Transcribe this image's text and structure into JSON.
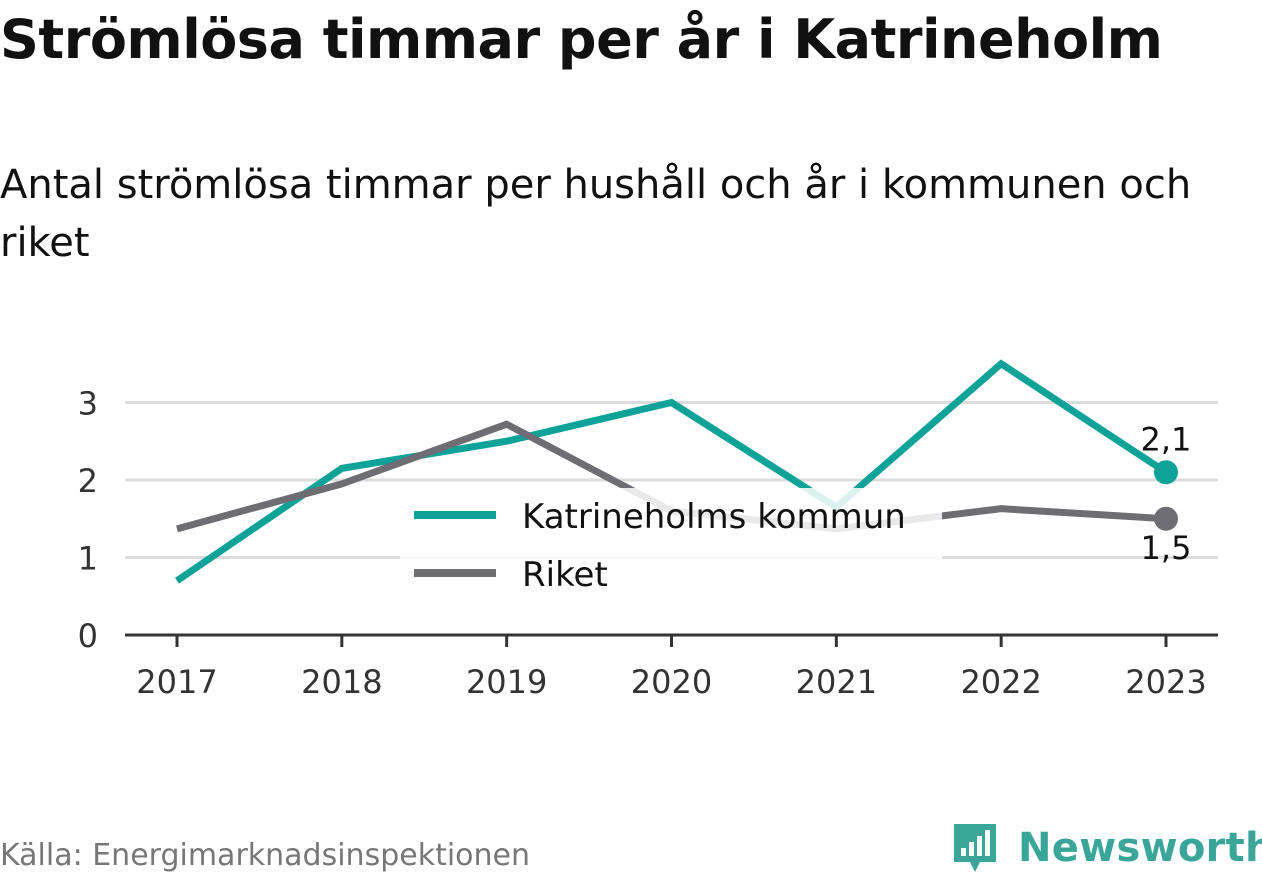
{
  "header": {
    "title": "Strömlösa timmar per år i Katrineholm",
    "subtitle": "Antal strömlösa timmar per hushåll och år i kommunen och riket"
  },
  "chart_data": {
    "type": "line",
    "x": [
      "2017",
      "2018",
      "2019",
      "2020",
      "2021",
      "2022",
      "2023"
    ],
    "ylim": [
      0,
      3.6
    ],
    "yticks": [
      "0",
      "1",
      "2",
      "3"
    ],
    "grid": true,
    "legend_position": "center",
    "series": [
      {
        "name": "Katrineholms kommun",
        "color": "#0fa298",
        "values": [
          0.7,
          2.15,
          2.5,
          3.0,
          1.65,
          3.5,
          2.1
        ],
        "end_label": "2,1"
      },
      {
        "name": "Riket",
        "color": "#6e6d73",
        "values": [
          1.37,
          1.95,
          2.72,
          1.6,
          1.37,
          1.63,
          1.5
        ],
        "end_label": "1,5"
      }
    ]
  },
  "footer": {
    "source": "Källa: Energimarknadsinspektionen",
    "brand": "Newsworthy",
    "brand_color": "#3aa69a",
    "brand_logo_icon": "bar-chart-badge-icon"
  }
}
